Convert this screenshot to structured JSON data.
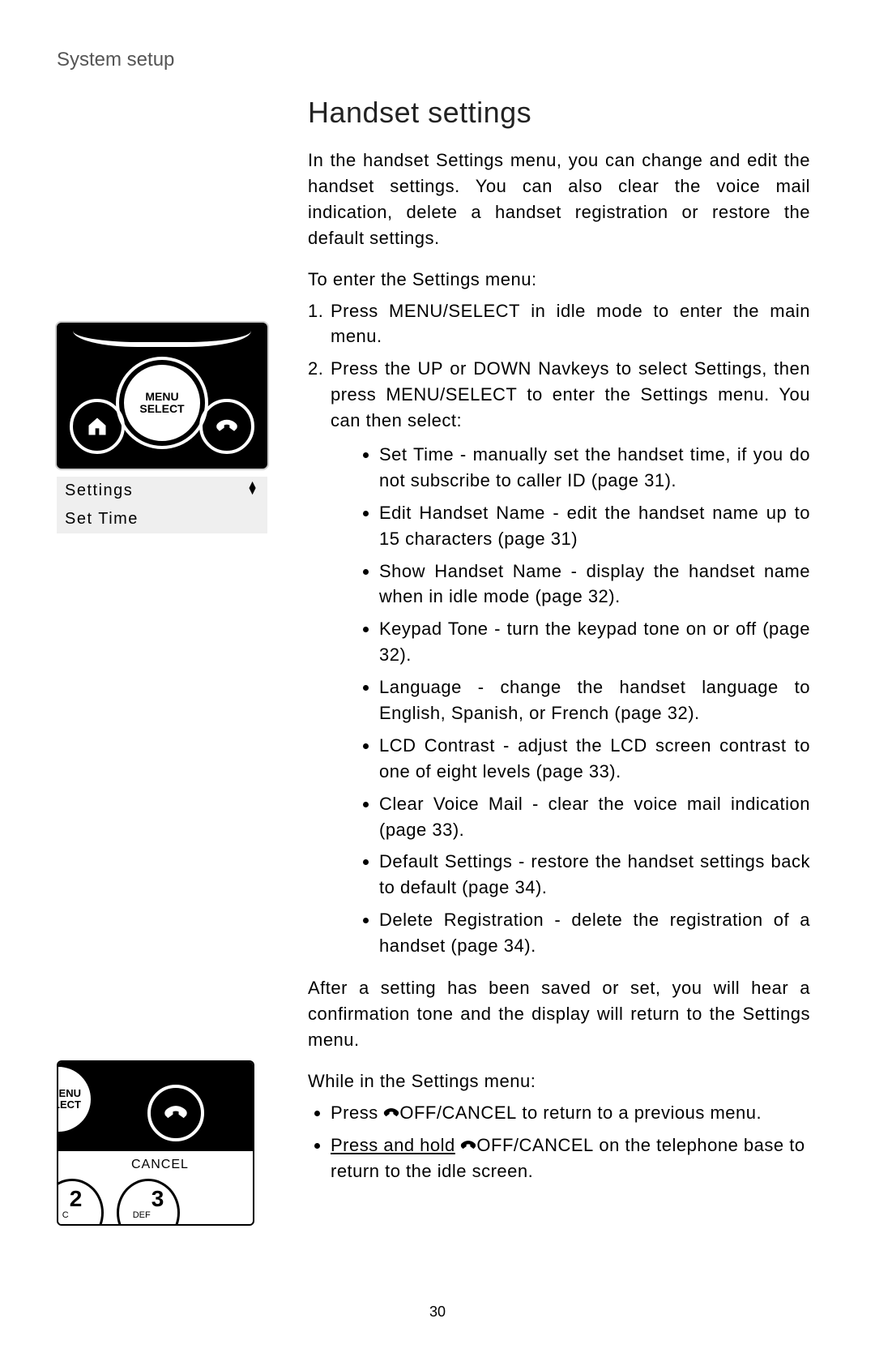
{
  "breadcrumb": "System setup",
  "title": "Handset settings",
  "intro": {
    "prefix": "In the handset ",
    "settings_word": "Settings",
    "rest": " menu, you can change and edit the handset settings. You can also clear the voice mail indication, delete a handset registration or restore the default settings."
  },
  "enter_lead": {
    "prefix": "To enter the ",
    "settings_word": "Settings",
    "suffix": " menu:"
  },
  "step1": {
    "a": "Press ",
    "menu": "MENU/",
    "select": "SELECT",
    "b": " in idle mode to enter the main menu."
  },
  "step2": {
    "a": "Press the ",
    "up": "UP",
    "b": " or ",
    "down": "DOWN",
    "c": " Navkeys to select ",
    "settings": "Settings",
    "d": ", then press ",
    "menu": "MENU",
    "slash": "/",
    "select": "SELECT",
    "e": " to enter the Settings menu. You can then select:"
  },
  "submenu": [
    {
      "name": "Set Time",
      "desc": " - manually set the handset time, if you do not subscribe to caller ID (page 31)."
    },
    {
      "name": "Edit Handset Name",
      "desc": " - edit the handset name up to 15 characters (page 31)"
    },
    {
      "name": "Show Handset Name",
      "desc": " - display the handset name when in idle mode (page 32)."
    },
    {
      "name": "Keypad Tone",
      "desc": " - turn the keypad tone on or off (page 32)."
    },
    {
      "name": "Language",
      "desc": " - change the handset language to English, Spanish, or French (page 32)."
    },
    {
      "name": "LCD Contrast",
      "desc": " - adjust the LCD screen contrast to one of eight levels (page 33)."
    },
    {
      "name": "Clear Voice Mail",
      "desc": " - clear the voice mail indication (page 33)."
    },
    {
      "name": "Default Settings",
      "desc": " - restore the handset settings back to default (page 34)."
    },
    {
      "name": "Delete Registration",
      "desc": " - delete the registration of a handset (page 34)."
    }
  ],
  "after": {
    "a": "After a setting has been saved or set, you will hear a confirmation tone and the display will return to the ",
    "settings": "Settings",
    "b": " menu."
  },
  "while_lead": {
    "a": "While in the ",
    "settings": "Settings",
    "b": " menu:"
  },
  "action1": {
    "a": "Press ",
    "off": "OFF",
    "slash": "/",
    "cancel": "CANCEL",
    "b": " to return to a previous menu."
  },
  "action2": {
    "ph": "Press and hold",
    "off": "OFF",
    "slash": "/",
    "cancel": "CANCEL",
    "b": " on the telephone base  to return to the idle screen."
  },
  "page_number": "30",
  "figures": {
    "menu_btn_line1": "MENU",
    "menu_btn_line2": "SELECT",
    "lcd_row1": "Settings",
    "lcd_row2": "Set Time",
    "pb_menu_line1": "ENU",
    "pb_menu_line2": "LECT",
    "pb_cancel": "CANCEL",
    "key2_label": "C",
    "key2_num": "2",
    "key3_label": "DEF",
    "key3_num": "3"
  }
}
